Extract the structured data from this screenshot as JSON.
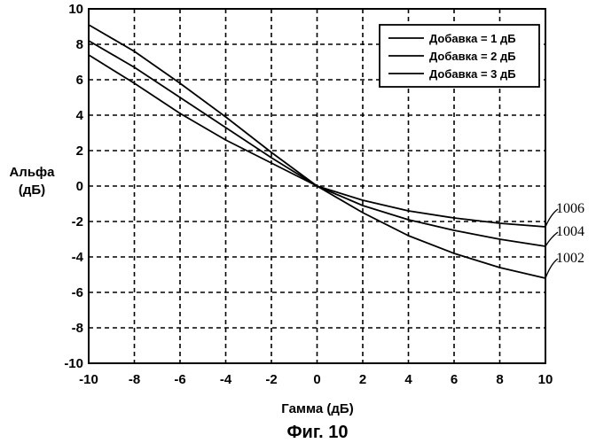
{
  "chart_data": {
    "type": "line",
    "xlabel": "Гамма (дБ)",
    "ylabel": [
      "Альфа",
      "(дБ)"
    ],
    "caption": "Фиг. 10",
    "xlim": [
      -10,
      10
    ],
    "ylim": [
      -10,
      10
    ],
    "xticks": [
      "-10",
      "-8",
      "-6",
      "-4",
      "-2",
      "0",
      "2",
      "4",
      "6",
      "8",
      "10"
    ],
    "yticks": [
      "10",
      "8",
      "6",
      "4",
      "2",
      "0",
      "-2",
      "-4",
      "-6",
      "-8",
      "-10"
    ],
    "grid": true,
    "legend_position": "top-right",
    "series": [
      {
        "name": "Добавка = 1 дБ",
        "ref": "1002",
        "x": [
          -10,
          -8,
          -6,
          -4,
          -2,
          0,
          2,
          4,
          6,
          8,
          10
        ],
        "y": [
          9.1,
          7.6,
          5.8,
          3.9,
          1.9,
          0,
          -1.5,
          -2.8,
          -3.8,
          -4.6,
          -5.2
        ]
      },
      {
        "name": "Добавка = 2 дБ",
        "ref": "1004",
        "x": [
          -10,
          -8,
          -6,
          -4,
          -2,
          0,
          2,
          4,
          6,
          8,
          10
        ],
        "y": [
          8.2,
          6.7,
          5.0,
          3.3,
          1.6,
          0,
          -1.1,
          -1.9,
          -2.5,
          -3.0,
          -3.4
        ]
      },
      {
        "name": "Добавка = 3 дБ",
        "ref": "1006",
        "x": [
          -10,
          -8,
          -6,
          -4,
          -2,
          0,
          2,
          4,
          6,
          8,
          10
        ],
        "y": [
          7.4,
          5.8,
          4.1,
          2.6,
          1.3,
          0,
          -0.8,
          -1.4,
          -1.8,
          -2.1,
          -2.3
        ]
      }
    ]
  }
}
